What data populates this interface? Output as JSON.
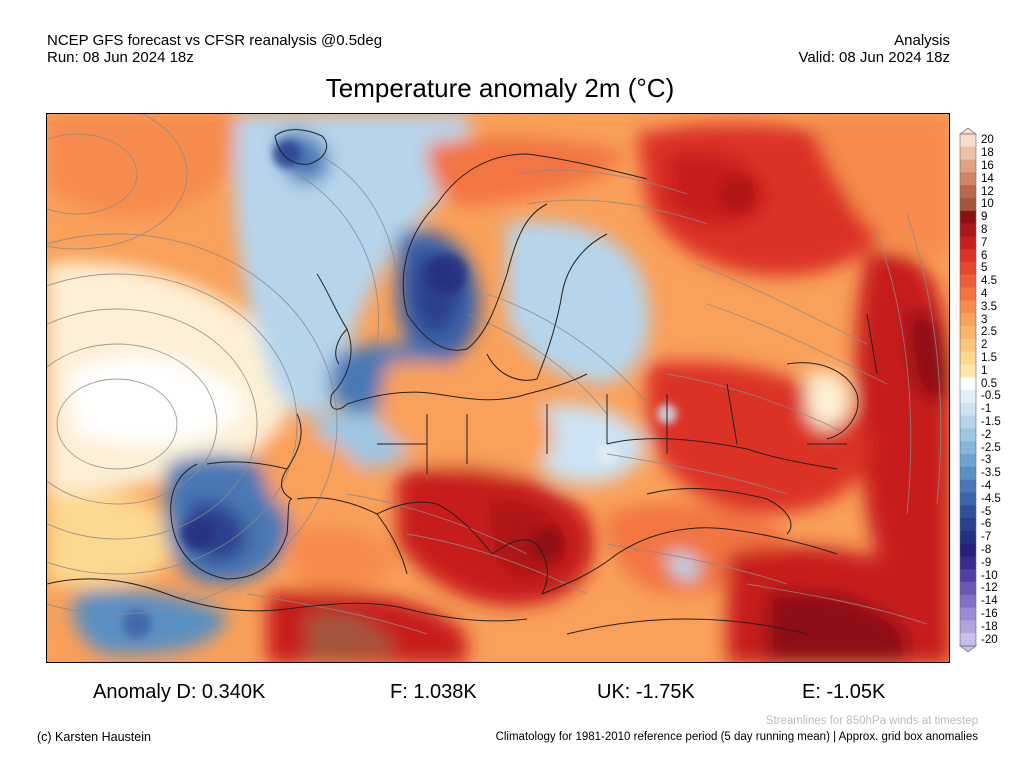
{
  "header": {
    "left_line1": "NCEP GFS forecast vs CFSR reanalysis @0.5deg",
    "left_line2": "Run: 08 Jun 2024 18z",
    "right_line1": "Analysis",
    "right_line2": "Valid: 08 Jun 2024 18z",
    "title": "Temperature anomaly 2m (°C)"
  },
  "stats": {
    "germany": "Anomaly D: 0.340K",
    "france": "F: 1.038K",
    "uk": "UK: -1.75K",
    "spain": "E: -1.05K"
  },
  "footer": {
    "credit": "(c) Karsten Haustein",
    "streamlines_note": "Streamlines for 850hPa winds at timestep",
    "climatology_note": "Climatology for 1981-2010 reference period (5 day running mean) | Approx. grid box anomalies"
  },
  "colorbar": {
    "labels": [
      "20",
      "18",
      "16",
      "14",
      "12",
      "10",
      "9",
      "8",
      "7",
      "6",
      "5",
      "4.5",
      "4",
      "3.5",
      "3",
      "2.5",
      "2",
      "1.5",
      "1",
      "0.5",
      "-0.5",
      "-1",
      "-1.5",
      "-2",
      "-2.5",
      "-3",
      "-3.5",
      "-4",
      "-4.5",
      "-5",
      "-6",
      "-7",
      "-8",
      "-9",
      "-10",
      "-12",
      "-14",
      "-16",
      "-18",
      "-20"
    ],
    "colors": [
      "#f7dccb",
      "#eec0a6",
      "#e0a283",
      "#cf8465",
      "#b9684e",
      "#a5543d",
      "#8e0f12",
      "#ad1418",
      "#c81e1d",
      "#dc3125",
      "#e8472f",
      "#ef5c39",
      "#f37443",
      "#f78b4e",
      "#f9a05a",
      "#fbb46a",
      "#fcc67c",
      "#fdd890",
      "#fde7ab",
      "#ffffff",
      "#e3eef8",
      "#cde2f2",
      "#b6d5ec",
      "#9ec6e3",
      "#86b6da",
      "#6fa3cf",
      "#5a8fc2",
      "#4a78b5",
      "#3d63a8",
      "#31509b",
      "#29408e",
      "#262f7f",
      "#2a1f78",
      "#3a2a8c",
      "#51409f",
      "#6b58b3",
      "#8470c5",
      "#9c8ad4",
      "#b3a4e0",
      "#c9bdeb"
    ]
  },
  "map": {
    "field": "2m temperature anomaly",
    "colors": {
      "land_border": "#222222",
      "streamline": "#8a8a8a"
    }
  }
}
